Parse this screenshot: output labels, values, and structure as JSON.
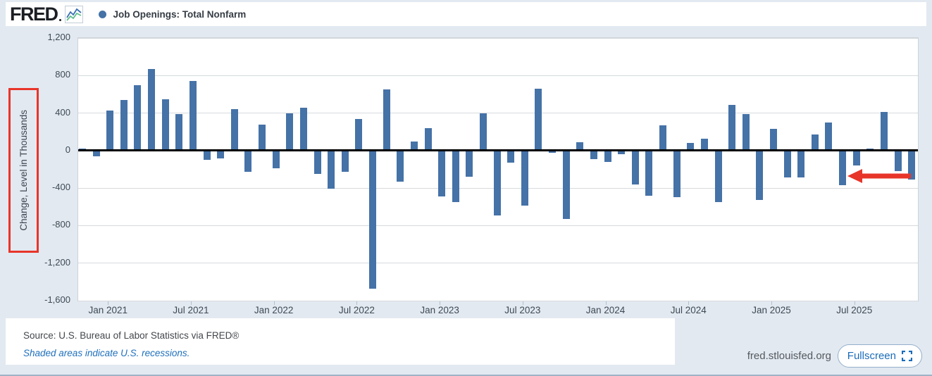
{
  "header": {
    "logo_text": "FRED",
    "series_label": "Job Openings: Total Nonfarm"
  },
  "chart_data": {
    "type": "bar",
    "title": "Job Openings: Total Nonfarm",
    "ylabel": "Change, Level in Thousands",
    "units": "thousands",
    "ylim": [
      -1600,
      1200
    ],
    "grid": true,
    "yticks": [
      1200,
      800,
      400,
      0,
      -400,
      -800,
      -1200,
      -1600
    ],
    "ytick_labels": [
      "1,200",
      "800",
      "400",
      "0",
      "-400",
      "-800",
      "-1,200",
      "-1,600"
    ],
    "x": [
      "Nov 2020",
      "Dec 2020",
      "Jan 2021",
      "Feb 2021",
      "Mar 2021",
      "Apr 2021",
      "May 2021",
      "Jun 2021",
      "Jul 2021",
      "Aug 2021",
      "Sep 2021",
      "Oct 2021",
      "Nov 2021",
      "Dec 2021",
      "Jan 2022",
      "Feb 2022",
      "Mar 2022",
      "Apr 2022",
      "May 2022",
      "Jun 2022",
      "Jul 2022",
      "Aug 2022",
      "Sep 2022",
      "Oct 2022",
      "Nov 2022",
      "Dec 2022",
      "Jan 2023",
      "Feb 2023",
      "Mar 2023",
      "Apr 2023",
      "May 2023",
      "Jun 2023",
      "Jul 2023",
      "Aug 2023",
      "Sep 2023",
      "Oct 2023",
      "Nov 2023",
      "Dec 2023",
      "Jan 2024",
      "Feb 2024",
      "Mar 2024",
      "Apr 2024",
      "May 2024",
      "Jun 2024",
      "Jul 2024",
      "Aug 2024",
      "Sep 2024",
      "Oct 2024",
      "Nov 2024",
      "Dec 2024",
      "Jan 2025",
      "Feb 2025",
      "Mar 2025",
      "Apr 2025",
      "May 2025",
      "Jun 2025",
      "Jul 2025",
      "Aug 2025",
      "Sep 2025",
      "Oct 2025",
      "Nov 2025"
    ],
    "values": [
      20,
      -60,
      430,
      540,
      700,
      870,
      550,
      390,
      740,
      -100,
      -80,
      440,
      -230,
      280,
      -190,
      400,
      460,
      -250,
      -410,
      -230,
      340,
      -1470,
      650,
      -330,
      100,
      240,
      -490,
      -550,
      -280,
      400,
      -690,
      -130,
      -590,
      660,
      -20,
      -730,
      90,
      -90,
      -120,
      -40,
      -360,
      -480,
      270,
      -500,
      80,
      130,
      -550,
      490,
      390,
      -530,
      230,
      -290,
      -290,
      170,
      300,
      -370,
      -160,
      20,
      410,
      -220,
      -310
    ],
    "xticks": [
      {
        "index": 2,
        "label": "Jan 2021"
      },
      {
        "index": 8,
        "label": "Jul 2021"
      },
      {
        "index": 14,
        "label": "Jan 2022"
      },
      {
        "index": 20,
        "label": "Jul 2022"
      },
      {
        "index": 26,
        "label": "Jan 2023"
      },
      {
        "index": 32,
        "label": "Jul 2023"
      },
      {
        "index": 38,
        "label": "Jan 2024"
      },
      {
        "index": 44,
        "label": "Jul 2024"
      },
      {
        "index": 50,
        "label": "Jan 2025"
      },
      {
        "index": 56,
        "label": "Jul 2025"
      }
    ],
    "legend": [
      {
        "label": "Job Openings: Total Nonfarm",
        "color": "#4572a7"
      }
    ],
    "annotations": {
      "ylabel_red_box": {
        "around": "Change, Level in Thousands",
        "color": "#e8352a"
      },
      "red_arrow": {
        "points_at": "Jun 2025",
        "target_index": 55,
        "target_value": -370,
        "direction": "left",
        "color": "#e8352a"
      }
    }
  },
  "colors": {
    "bar": "#4572a7",
    "annotation_red": "#e8352a",
    "background": "#e2e9f1",
    "plot_background": "#ffffff",
    "link_blue": "#1f70bc"
  },
  "footer": {
    "source": "Source: U.S. Bureau of Labor Statistics via FRED®",
    "recession_note": "Shaded areas indicate U.S. recessions.",
    "site": "fred.stlouisfed.org",
    "fullscreen_label": "Fullscreen"
  }
}
